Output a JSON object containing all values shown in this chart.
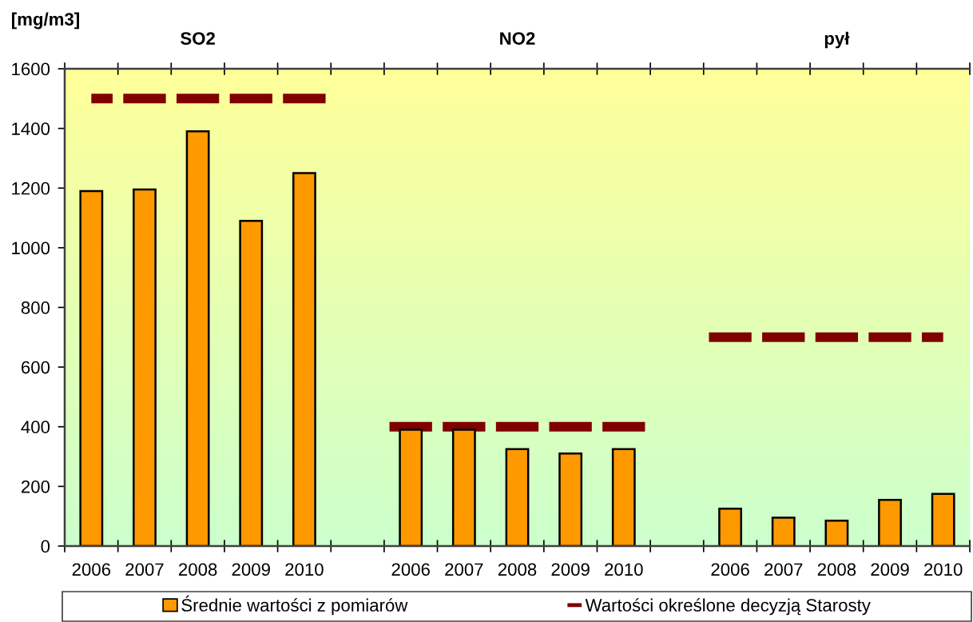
{
  "chart_data": {
    "type": "bar",
    "ylabel": "[mg/m3]",
    "categories": [
      "2006",
      "2007",
      "2008",
      "2009",
      "2010",
      null,
      "2006",
      "2007",
      "2008",
      "2009",
      "2010",
      null,
      "2006",
      "2007",
      "2008",
      "2009",
      "2010"
    ],
    "series": [
      {
        "name": "Średnie wartości z pomiarów",
        "color": "#ff9900",
        "values": [
          1190,
          1195,
          1390,
          1090,
          1250,
          null,
          390,
          390,
          325,
          310,
          325,
          null,
          125,
          95,
          85,
          155,
          175
        ]
      },
      {
        "name": "Wartości określone decyzją Starosty",
        "type": "step",
        "line_style": "dashed",
        "color": "#800000",
        "values": [
          1500,
          1500,
          1500,
          1500,
          1500,
          null,
          400,
          400,
          400,
          400,
          400,
          null,
          700,
          700,
          700,
          700,
          700
        ]
      }
    ],
    "ylim": [
      0,
      1600
    ],
    "yticks": [
      0,
      200,
      400,
      600,
      800,
      1000,
      1200,
      1400,
      1600
    ],
    "annotations": [
      "SO2",
      "NO2",
      "pył"
    ],
    "legend": "bottom"
  }
}
